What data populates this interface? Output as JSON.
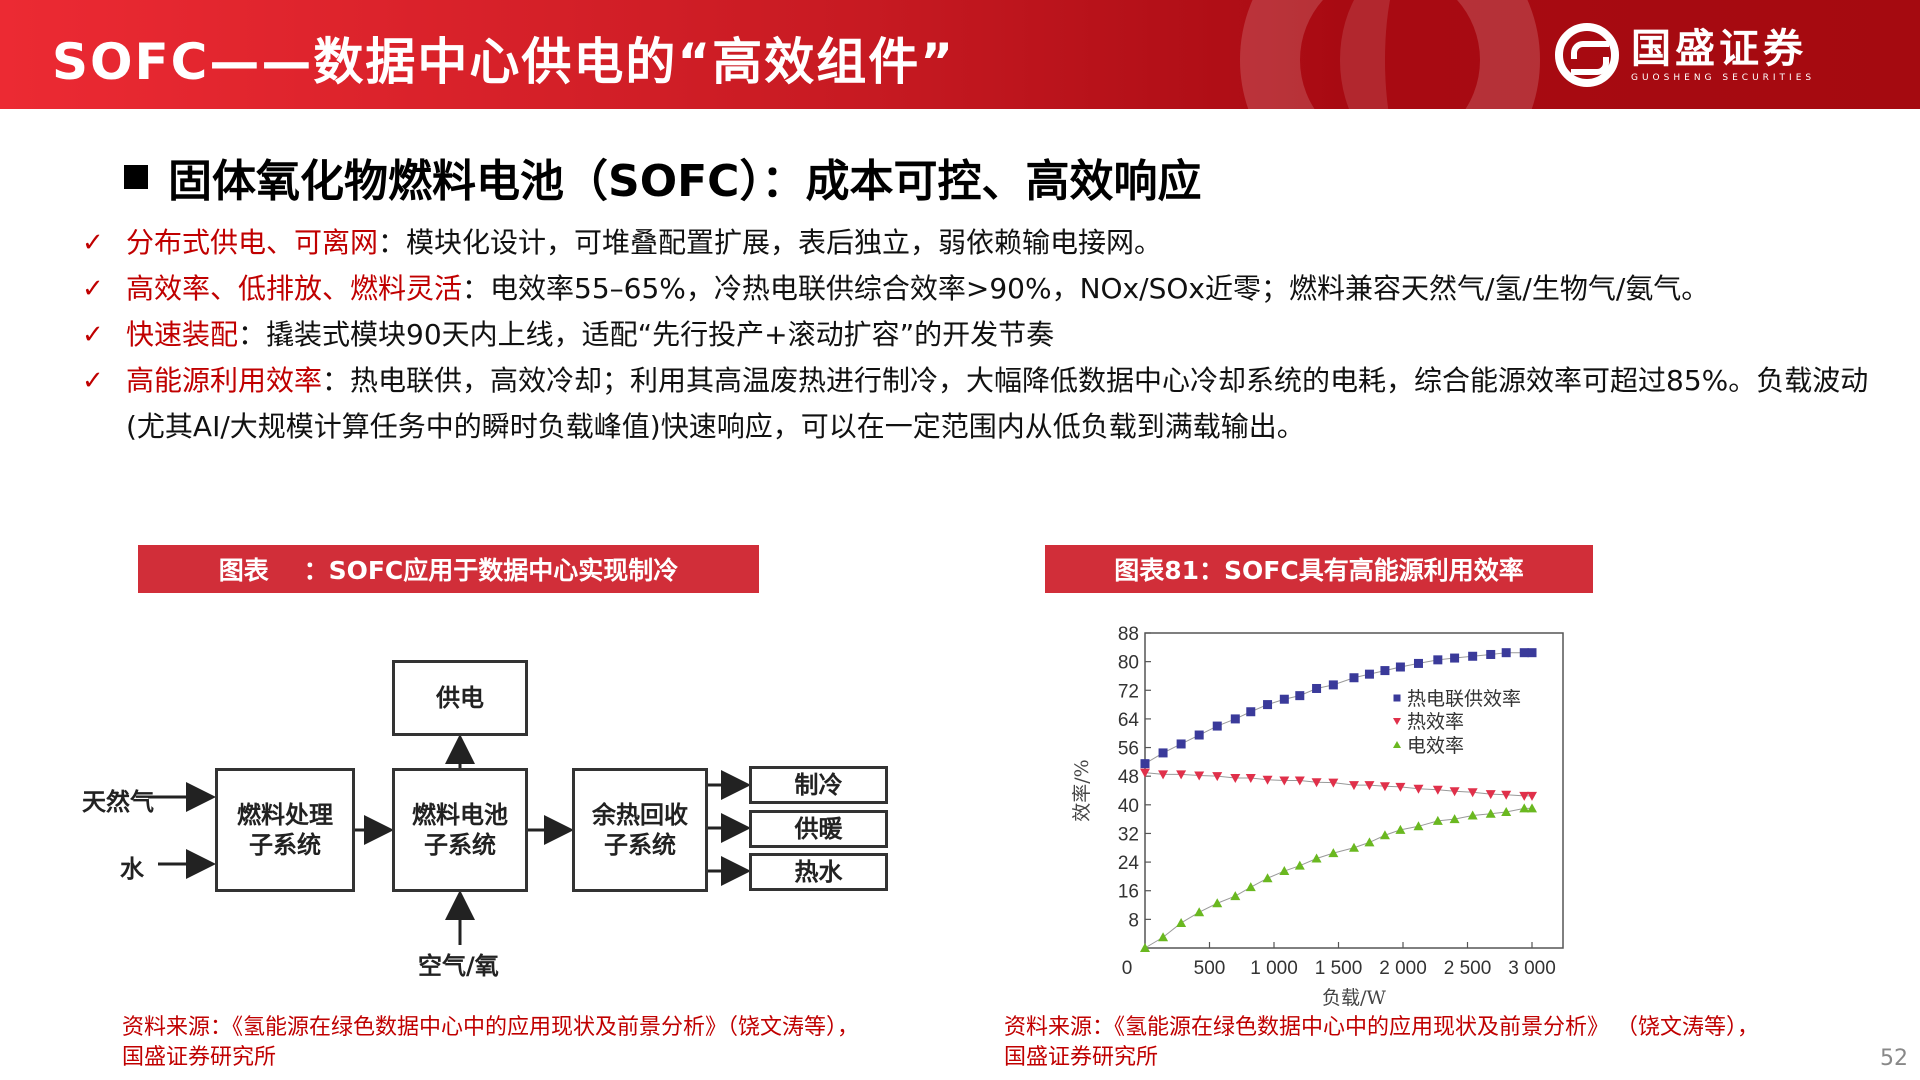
{
  "header": {
    "title": "SOFC——数据中心供电的“高效组件”",
    "logo_cn": "国盛证券",
    "logo_en": "GUOSHENG SECURITIES"
  },
  "section": {
    "heading": "固体氧化物燃料电池（SOFC）：成本可控、高效响应"
  },
  "bullets": [
    {
      "key": "分布式供电、可离网",
      "text": "：模块化设计，可堆叠配置扩展，表后独立，弱依赖输电接网。"
    },
    {
      "key": "高效率、低排放、燃料灵活",
      "text": "：电效率55–65%，冷热电联供综合效率>90%，NOx/SOx近零；燃料兼容天然气/氢/生物气/氨气。"
    },
    {
      "key": "快速装配",
      "text": "：撬装式模块90天内上线，适配“先行投产+滚动扩容”的开发节奏"
    },
    {
      "key": "高能源利用效率",
      "text": "：热电联供，高效冷却；利用其高温废热进行制冷，大幅降低数据中心冷却系统的电耗，综合能源效率可超过85%。负载波动(尤其AI/大规模计算任务中的瞬时负载峰值)快速响应，可以在一定范围内从低负载到满载输出。"
    }
  ],
  "figures": {
    "left": {
      "caption": "图表    ：SOFC应用于数据中心实现制冷",
      "diagram": {
        "inputs": [
          "天然气",
          "水"
        ],
        "boxes": {
          "fuel_processing": "燃料处理\n子系统",
          "fuel_cell": "燃料电池\n子系统",
          "heat_recovery": "余热回收\n子系统",
          "power": "供电"
        },
        "air_input": "空气/氧",
        "outputs": [
          "制冷",
          "供暖",
          "热水"
        ]
      },
      "source": [
        "资料来源：《氢能源在绿色数据中心中的应用现状及前景分析》（饶文涛等），",
        "国盛证券研究所"
      ]
    },
    "right": {
      "caption": "图表81：SOFC具有高能源利用效率",
      "source": [
        "资料来源：《氢能源在绿色数据中心中的应用现状及前景分析》 （饶文涛等），",
        "国盛证券研究所"
      ]
    }
  },
  "chart_data": {
    "type": "scatter",
    "title": "SOFC具有高能源利用效率",
    "xlabel": "负载/W",
    "ylabel": "效率/%",
    "xlim": [
      0,
      3200
    ],
    "ylim": [
      0,
      88
    ],
    "xticks": [
      "0",
      "500",
      "1 000",
      "1 500",
      "2 000",
      "2 500",
      "3 000"
    ],
    "yticks": [
      "8",
      "16",
      "24",
      "32",
      "40",
      "48",
      "56",
      "64",
      "72",
      "80",
      "88"
    ],
    "grid": false,
    "legend_position": "upper right (inside)",
    "x": [
      0,
      140,
      280,
      420,
      560,
      700,
      820,
      950,
      1080,
      1200,
      1330,
      1460,
      1620,
      1740,
      1860,
      1980,
      2120,
      2270,
      2400,
      2540,
      2680,
      2800,
      2940,
      3000
    ],
    "series": [
      {
        "name": "热电联供效率",
        "marker": "square",
        "color": "#3a3a9a",
        "values": [
          51.5,
          54.5,
          57,
          59.5,
          62,
          64,
          66,
          68,
          69.5,
          70.5,
          72.5,
          73.5,
          75.5,
          76.5,
          77.5,
          78.5,
          79.5,
          80.5,
          81,
          81.5,
          82,
          82.5,
          82.5,
          82.5
        ]
      },
      {
        "name": "热效率",
        "marker": "triangle-down",
        "color": "#e0304a",
        "values": [
          49,
          48.5,
          48.5,
          48.2,
          48,
          47.5,
          47.5,
          47,
          46.8,
          46.8,
          46.3,
          46.2,
          45.5,
          45.5,
          45.2,
          45,
          44.5,
          44.2,
          43.8,
          43.5,
          43,
          42.8,
          42.5,
          42.5
        ]
      },
      {
        "name": "电效率",
        "marker": "triangle-up",
        "color": "#6ab820",
        "values": [
          0,
          3,
          7,
          10,
          12.5,
          14.5,
          17,
          19.5,
          21.5,
          23,
          25,
          26.5,
          28,
          29.5,
          31.5,
          33,
          34,
          35.5,
          36,
          37,
          37.5,
          38,
          39,
          39
        ]
      }
    ]
  },
  "page": {
    "number": "52"
  },
  "colors": {
    "brand_red": "#d12e39",
    "accent_red": "#c00000"
  }
}
